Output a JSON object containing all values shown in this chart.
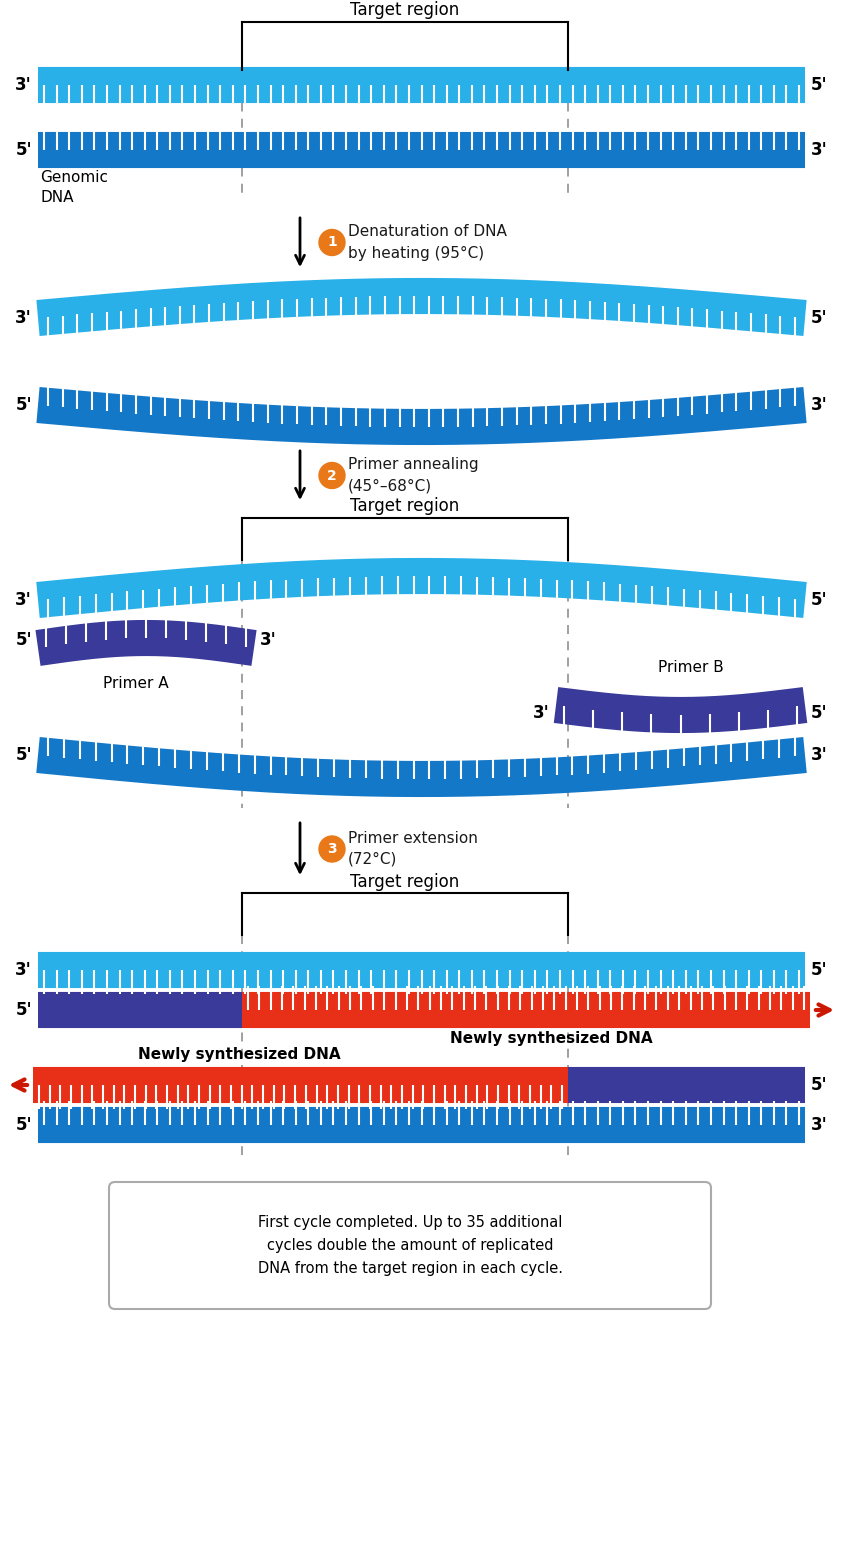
{
  "bg_color": "#ffffff",
  "blue_light": "#29b0e8",
  "blue_dark": "#1478c8",
  "blue_purple": "#3a3a9a",
  "red_strand": "#e83018",
  "red_arrow": "#cc1800",
  "orange_circle": "#e87818",
  "gray_text": "#1a1a1a",
  "dashed_color": "#999999",
  "step1_label": "Denaturation of DNA\nby heating (95°C)",
  "step2_label": "Primer annealing\n(45°–68°C)",
  "step3_label": "Primer extension\n(72°C)",
  "genomic_dna_label": "Genomic\nDNA",
  "target_region_label": "Target region",
  "primer_a_label": "Primer A",
  "primer_b_label": "Primer B",
  "newly_synth_label": "Newly synthesized DNA",
  "box_text": "First cycle completed. Up to 35 additional\ncycles double the amount of replicated\nDNA from the target region in each cycle.",
  "fig_width": 8.48,
  "fig_height": 15.45,
  "dpi": 100
}
